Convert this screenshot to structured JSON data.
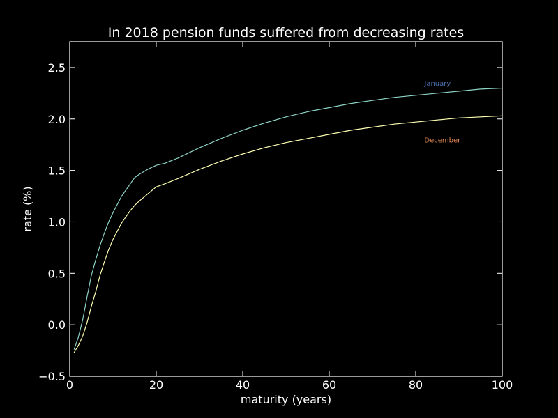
{
  "chart_data": {
    "type": "line",
    "title": "In 2018 pension funds suffered from decreasing rates",
    "xlabel": "maturity (years)",
    "ylabel": "rate (%)",
    "xlim": [
      0,
      100
    ],
    "ylim": [
      -0.5,
      2.75
    ],
    "xticks": [
      0,
      20,
      40,
      60,
      80,
      100
    ],
    "yticks": [
      -0.5,
      0.0,
      0.5,
      1.0,
      1.5,
      2.0,
      2.5
    ],
    "xtick_labels": [
      "0",
      "20",
      "40",
      "60",
      "80",
      "100"
    ],
    "ytick_labels": [
      "−0.5",
      "0.0",
      "0.5",
      "1.0",
      "1.5",
      "2.0",
      "2.5"
    ],
    "grid": false,
    "background": "#000000",
    "series": [
      {
        "color": "#8dd3c7",
        "x": [
          1,
          2,
          3,
          4,
          5,
          6,
          7,
          8,
          9,
          10,
          12,
          14,
          15,
          16,
          18,
          20,
          22,
          25,
          30,
          35,
          40,
          45,
          50,
          55,
          60,
          65,
          70,
          75,
          80,
          85,
          90,
          95,
          100
        ],
        "y": [
          -0.24,
          -0.12,
          0.05,
          0.27,
          0.48,
          0.63,
          0.77,
          0.89,
          1.0,
          1.09,
          1.25,
          1.37,
          1.43,
          1.46,
          1.51,
          1.55,
          1.57,
          1.62,
          1.72,
          1.81,
          1.89,
          1.96,
          2.02,
          2.07,
          2.11,
          2.15,
          2.18,
          2.21,
          2.23,
          2.25,
          2.27,
          2.29,
          2.3
        ]
      },
      {
        "color": "#ffffb3",
        "x": [
          1,
          2,
          3,
          4,
          5,
          6,
          7,
          8,
          9,
          10,
          12,
          14,
          15,
          16,
          18,
          20,
          22,
          25,
          30,
          35,
          40,
          45,
          50,
          55,
          60,
          65,
          70,
          75,
          80,
          85,
          90,
          95,
          100
        ],
        "y": [
          -0.27,
          -0.2,
          -0.11,
          0.02,
          0.18,
          0.32,
          0.48,
          0.61,
          0.73,
          0.83,
          0.99,
          1.11,
          1.16,
          1.2,
          1.27,
          1.34,
          1.37,
          1.42,
          1.51,
          1.59,
          1.66,
          1.72,
          1.77,
          1.81,
          1.85,
          1.89,
          1.92,
          1.95,
          1.97,
          1.99,
          2.01,
          2.02,
          2.03
        ]
      }
    ],
    "annotations": [
      {
        "text": "January",
        "x": 82,
        "y": 2.35,
        "color": "#4c72b0"
      },
      {
        "text": "December",
        "x": 82,
        "y": 1.8,
        "color": "#dd8452"
      }
    ]
  }
}
